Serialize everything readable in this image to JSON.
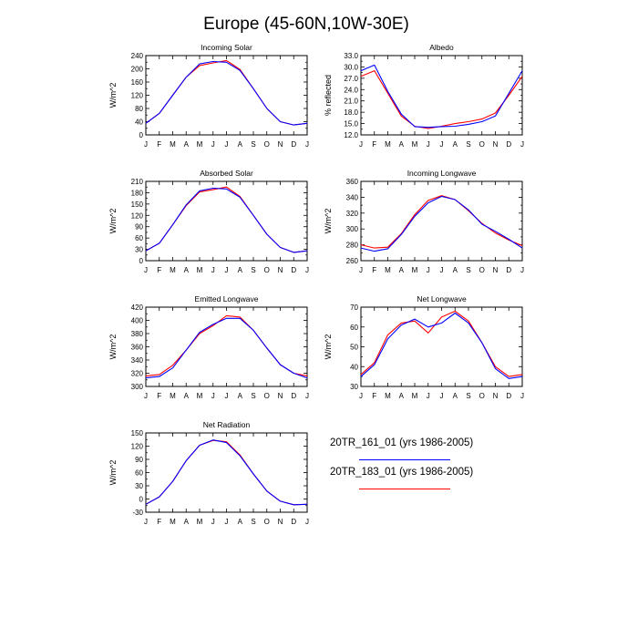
{
  "figure": {
    "title": "Europe (45-60N,10W-30E)"
  },
  "legend": [
    {
      "label": "20TR_161_01 (yrs 1986-2005)",
      "color": "#0000ff"
    },
    {
      "label": "20TR_183_01 (yrs 1986-2005)",
      "color": "#ff0000"
    }
  ],
  "chart_data": [
    {
      "type": "line",
      "title": "Incoming Solar",
      "ylabel": "W/m^2",
      "categories": [
        "J",
        "F",
        "M",
        "A",
        "M",
        "J",
        "J",
        "A",
        "S",
        "O",
        "N",
        "D",
        "J"
      ],
      "ylim": [
        0,
        240
      ],
      "yticks": [
        "0",
        "40",
        "80",
        "120",
        "160",
        "200",
        "240"
      ],
      "series": [
        {
          "name": "20TR_161_01 (yrs 1986-2005)",
          "color": "#0000ff",
          "values": [
            35,
            65,
            120,
            175,
            215,
            222,
            220,
            195,
            140,
            80,
            40,
            30,
            35
          ]
        },
        {
          "name": "20TR_183_01 (yrs 1986-2005)",
          "color": "#ff0000",
          "values": [
            35,
            65,
            120,
            175,
            210,
            218,
            225,
            198,
            140,
            80,
            40,
            30,
            35
          ]
        }
      ]
    },
    {
      "type": "line",
      "title": "Albedo",
      "ylabel": "% reflected",
      "categories": [
        "J",
        "F",
        "M",
        "A",
        "M",
        "J",
        "J",
        "A",
        "S",
        "O",
        "N",
        "D",
        "J"
      ],
      "ylim": [
        12,
        33
      ],
      "yticks": [
        "12.0",
        "15.0",
        "18.0",
        "21.0",
        "24.0",
        "27.0",
        "30.0",
        "33.0"
      ],
      "series": [
        {
          "name": "20TR_161_01 (yrs 1986-2005)",
          "color": "#0000ff",
          "values": [
            29.0,
            30.5,
            23.5,
            17.5,
            14.2,
            14.0,
            14.2,
            14.3,
            14.8,
            15.5,
            17.0,
            23.0,
            29.0
          ]
        },
        {
          "name": "20TR_183_01 (yrs 1986-2005)",
          "color": "#ff0000",
          "values": [
            27.5,
            29.0,
            23.0,
            17.0,
            14.3,
            13.7,
            14.3,
            15.0,
            15.5,
            16.2,
            17.8,
            22.5,
            27.5
          ]
        }
      ]
    },
    {
      "type": "line",
      "title": "Absorbed Solar",
      "ylabel": "W/m^2",
      "categories": [
        "J",
        "F",
        "M",
        "A",
        "M",
        "J",
        "J",
        "A",
        "S",
        "O",
        "N",
        "D",
        "J"
      ],
      "ylim": [
        0,
        210
      ],
      "yticks": [
        "0",
        "30",
        "60",
        "90",
        "120",
        "150",
        "180",
        "210"
      ],
      "series": [
        {
          "name": "20TR_161_01 (yrs 1986-2005)",
          "color": "#0000ff",
          "values": [
            26,
            46,
            95,
            148,
            185,
            192,
            190,
            168,
            120,
            70,
            35,
            22,
            26
          ]
        },
        {
          "name": "20TR_183_01 (yrs 1986-2005)",
          "color": "#ff0000",
          "values": [
            26,
            46,
            95,
            146,
            182,
            188,
            195,
            170,
            120,
            70,
            35,
            22,
            26
          ]
        }
      ]
    },
    {
      "type": "line",
      "title": "Incoming Longwave",
      "ylabel": "W/m^2",
      "categories": [
        "J",
        "F",
        "M",
        "A",
        "M",
        "J",
        "J",
        "A",
        "S",
        "O",
        "N",
        "D",
        "J"
      ],
      "ylim": [
        260,
        360
      ],
      "yticks": [
        "260",
        "280",
        "300",
        "320",
        "340",
        "360"
      ],
      "series": [
        {
          "name": "20TR_161_01 (yrs 1986-2005)",
          "color": "#0000ff",
          "values": [
            276,
            272,
            275,
            293,
            316,
            333,
            341,
            337,
            324,
            306,
            297,
            287,
            276
          ]
        },
        {
          "name": "20TR_183_01 (yrs 1986-2005)",
          "color": "#ff0000",
          "values": [
            280,
            276,
            277,
            294,
            318,
            336,
            342,
            337,
            323,
            307,
            295,
            286,
            279
          ]
        }
      ]
    },
    {
      "type": "line",
      "title": "Emitted Longwave",
      "ylabel": "W/m^2",
      "categories": [
        "J",
        "F",
        "M",
        "A",
        "M",
        "J",
        "J",
        "A",
        "S",
        "O",
        "N",
        "D",
        "J"
      ],
      "ylim": [
        300,
        420
      ],
      "yticks": [
        "300",
        "320",
        "340",
        "360",
        "380",
        "400",
        "420"
      ],
      "series": [
        {
          "name": "20TR_161_01 (yrs 1986-2005)",
          "color": "#0000ff",
          "values": [
            313,
            315,
            328,
            355,
            382,
            394,
            403,
            403,
            385,
            358,
            333,
            320,
            313
          ]
        },
        {
          "name": "20TR_183_01 (yrs 1986-2005)",
          "color": "#ff0000",
          "values": [
            316,
            318,
            332,
            355,
            380,
            392,
            407,
            405,
            385,
            358,
            333,
            320,
            316
          ]
        }
      ]
    },
    {
      "type": "line",
      "title": "Net Longwave",
      "ylabel": "W/m^2",
      "categories": [
        "J",
        "F",
        "M",
        "A",
        "M",
        "J",
        "J",
        "A",
        "S",
        "O",
        "N",
        "D",
        "J"
      ],
      "ylim": [
        30,
        70
      ],
      "yticks": [
        "30",
        "40",
        "50",
        "60",
        "70"
      ],
      "series": [
        {
          "name": "20TR_161_01 (yrs 1986-2005)",
          "color": "#0000ff",
          "values": [
            35,
            41,
            54,
            61,
            64,
            60,
            62,
            67,
            62,
            52,
            39,
            34,
            35
          ]
        },
        {
          "name": "20TR_183_01 (yrs 1986-2005)",
          "color": "#ff0000",
          "values": [
            36,
            42,
            56,
            62,
            63,
            57,
            65,
            68,
            63,
            52,
            40,
            35,
            36
          ]
        }
      ]
    },
    {
      "type": "line",
      "title": "Net Radiation",
      "ylabel": "W/m^2",
      "categories": [
        "J",
        "F",
        "M",
        "A",
        "M",
        "J",
        "J",
        "A",
        "S",
        "O",
        "N",
        "D",
        "J"
      ],
      "ylim": [
        -30,
        150
      ],
      "yticks": [
        "-30",
        "0",
        "30",
        "60",
        "90",
        "120",
        "150"
      ],
      "series": [
        {
          "name": "20TR_161_01 (yrs 1986-2005)",
          "color": "#0000ff",
          "values": [
            -12,
            5,
            40,
            87,
            122,
            134,
            128,
            98,
            57,
            18,
            -5,
            -13,
            -12
          ]
        },
        {
          "name": "20TR_183_01 (yrs 1986-2005)",
          "color": "#ff0000",
          "values": [
            -12,
            5,
            40,
            87,
            122,
            133,
            130,
            100,
            57,
            18,
            -5,
            -13,
            -12
          ]
        }
      ]
    }
  ]
}
